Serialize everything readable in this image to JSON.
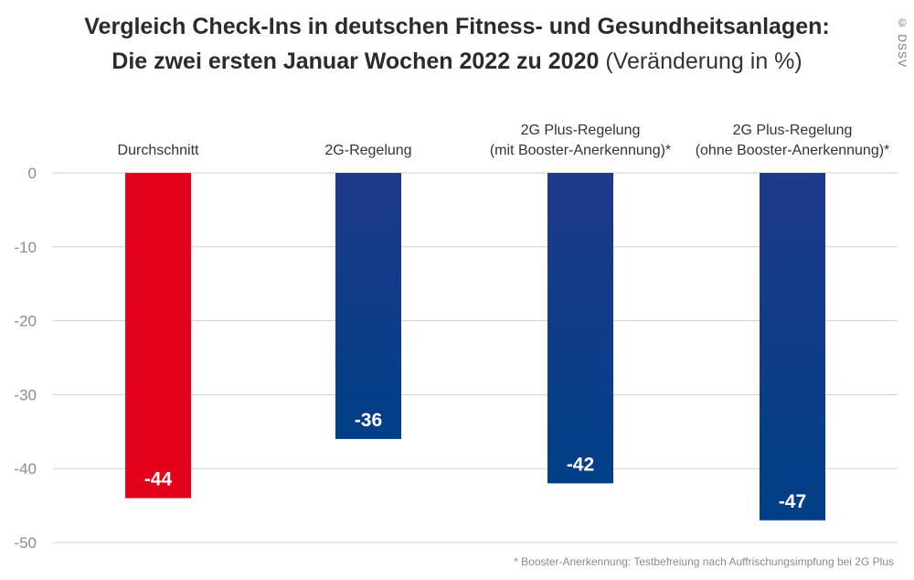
{
  "title_line1": "Vergleich Check-Ins in deutschen Fitness- und Gesundheitsanlagen:",
  "title_line2": "Die zwei ersten Januar Wochen 2022 zu 2020",
  "title_unit": "(Veränderung in %)",
  "copyright": "© DSSV",
  "footnote": "* Booster-Anerkennung: Testbefreiung nach Auffrischungsimpfung bei 2G Plus",
  "colors": {
    "highlight": "#e3001b",
    "bar_top": "#1e3a8a",
    "bar_bottom": "#003f87",
    "grid": "#cfcfcf",
    "tick_text": "#8c8c8c",
    "category_text": "#333333",
    "value_text": "#ffffff"
  },
  "chart_data": {
    "type": "bar",
    "title": "Vergleich Check-Ins in deutschen Fitness- und Gesundheitsanlagen: Die zwei ersten Januar Wochen 2022 zu 2020 (Veränderung in %)",
    "categories": [
      [
        "Durchschnitt"
      ],
      [
        "2G-Regelung"
      ],
      [
        "2G Plus-Regelung",
        "(mit Booster-Anerkennung)*"
      ],
      [
        "2G Plus-Regelung",
        "(ohne Booster-Anerkennung)*"
      ]
    ],
    "values": [
      -44,
      -36,
      -42,
      -47
    ],
    "value_labels": [
      "-44",
      "-36",
      "-42",
      "-47"
    ],
    "highlight": [
      true,
      false,
      false,
      false
    ],
    "yticks": [
      0,
      -10,
      -20,
      -30,
      -40,
      -50
    ],
    "ylim": [
      -50,
      0
    ],
    "grid": true,
    "category_position": "top"
  }
}
